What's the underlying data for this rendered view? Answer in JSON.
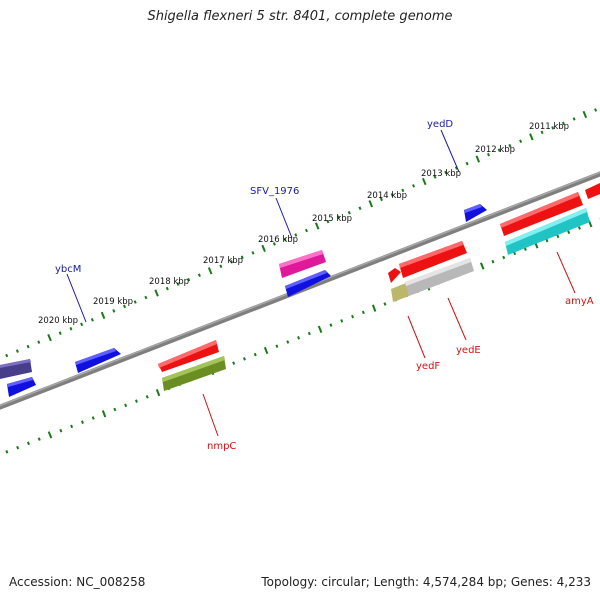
{
  "title": "Shigella flexneri 5 str. 8401, complete genome",
  "accession": "Accession: NC_008258",
  "summary": "Topology: circular; Length: 4,574,284 bp; Genes: 4,233",
  "kbp_labels": [
    "2011 kbp",
    "2012 kbp",
    "2013 kbp",
    "2014 kbp",
    "2015 kbp",
    "2016 kbp",
    "2017 kbp",
    "2018 kbp",
    "2019 kbp",
    "2020 kbp"
  ],
  "gene_labels": {
    "yedD": "yedD",
    "SFV_1976": "SFV_1976",
    "ybcM": "ybcM",
    "amyA": "amyA",
    "yedE": "yedE",
    "yedF": "yedF",
    "nmpC": "nmpC"
  },
  "colors": {
    "backbone": "#808080",
    "tick": "#1a7a1a",
    "blue": "#1010e0",
    "red": "#ee1111",
    "magenta": "#e0189a",
    "olive": "#6b8e23",
    "cyan": "#20c4c4",
    "gray": "#b8b8b8",
    "khaki": "#bdb76b",
    "slate": "#483d8b"
  }
}
